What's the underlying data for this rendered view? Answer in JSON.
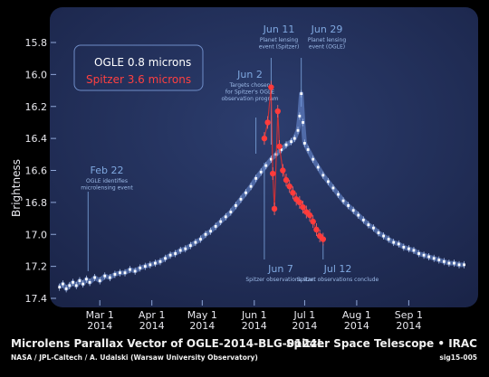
{
  "chart_data": {
    "type": "scatter",
    "ylabel": "Brightness",
    "xlabel": "",
    "y_inverted": true,
    "ylim": [
      17.4,
      15.8
    ],
    "xlim": [
      "2014-02-03",
      "2014-10-08"
    ],
    "x_ticks": [
      {
        "x": "2014-03-01",
        "label1": "Mar 1",
        "label2": "2014"
      },
      {
        "x": "2014-04-01",
        "label1": "Apr 1",
        "label2": "2014"
      },
      {
        "x": "2014-05-01",
        "label1": "May 1",
        "label2": "2014"
      },
      {
        "x": "2014-06-01",
        "label1": "Jun 1",
        "label2": "2014"
      },
      {
        "x": "2014-07-01",
        "label1": "Jul 1",
        "label2": "2014"
      },
      {
        "x": "2014-08-01",
        "label1": "Aug 1",
        "label2": "2014"
      },
      {
        "x": "2014-09-01",
        "label1": "Sep 1",
        "label2": "2014"
      }
    ],
    "y_ticks": [
      "15.8",
      "16.0",
      "16.2",
      "16.4",
      "16.6",
      "16.8",
      "17.0",
      "17.2",
      "17.4"
    ],
    "legend": {
      "placement": "top-left",
      "entries": [
        "OGLE 0.8 microns",
        "Spitzer 3.6 microns"
      ]
    },
    "series": [
      {
        "name": "OGLE 0.8 microns",
        "color": "#ffffff",
        "points": [
          [
            "2014-02-05",
            17.33
          ],
          [
            "2014-02-07",
            17.31
          ],
          [
            "2014-02-09",
            17.34
          ],
          [
            "2014-02-11",
            17.32
          ],
          [
            "2014-02-13",
            17.3
          ],
          [
            "2014-02-15",
            17.32
          ],
          [
            "2014-02-17",
            17.29
          ],
          [
            "2014-02-19",
            17.31
          ],
          [
            "2014-02-21",
            17.28
          ],
          [
            "2014-02-23",
            17.3
          ],
          [
            "2014-02-26",
            17.27
          ],
          [
            "2014-03-01",
            17.29
          ],
          [
            "2014-03-04",
            17.26
          ],
          [
            "2014-03-07",
            17.27
          ],
          [
            "2014-03-10",
            17.25
          ],
          [
            "2014-03-13",
            17.24
          ],
          [
            "2014-03-16",
            17.24
          ],
          [
            "2014-03-19",
            17.22
          ],
          [
            "2014-03-22",
            17.23
          ],
          [
            "2014-03-25",
            17.21
          ],
          [
            "2014-03-28",
            17.2
          ],
          [
            "2014-03-31",
            17.19
          ],
          [
            "2014-04-03",
            17.18
          ],
          [
            "2014-04-06",
            17.17
          ],
          [
            "2014-04-09",
            17.15
          ],
          [
            "2014-04-12",
            17.13
          ],
          [
            "2014-04-15",
            17.12
          ],
          [
            "2014-04-18",
            17.1
          ],
          [
            "2014-04-21",
            17.09
          ],
          [
            "2014-04-24",
            17.07
          ],
          [
            "2014-04-27",
            17.05
          ],
          [
            "2014-04-30",
            17.03
          ],
          [
            "2014-05-03",
            17.0
          ],
          [
            "2014-05-06",
            16.98
          ],
          [
            "2014-05-09",
            16.95
          ],
          [
            "2014-05-12",
            16.92
          ],
          [
            "2014-05-15",
            16.89
          ],
          [
            "2014-05-18",
            16.86
          ],
          [
            "2014-05-21",
            16.82
          ],
          [
            "2014-05-24",
            16.78
          ],
          [
            "2014-05-27",
            16.74
          ],
          [
            "2014-05-30",
            16.7
          ],
          [
            "2014-06-02",
            16.65
          ],
          [
            "2014-06-05",
            16.61
          ],
          [
            "2014-06-08",
            16.57
          ],
          [
            "2014-06-11",
            16.53
          ],
          [
            "2014-06-14",
            16.5
          ],
          [
            "2014-06-17",
            16.47
          ],
          [
            "2014-06-20",
            16.44
          ],
          [
            "2014-06-23",
            16.42
          ],
          [
            "2014-06-25",
            16.4
          ],
          [
            "2014-06-27",
            16.35
          ],
          [
            "2014-06-28",
            16.26
          ],
          [
            "2014-06-29",
            16.12
          ],
          [
            "2014-06-30",
            16.3
          ],
          [
            "2014-07-01",
            16.43
          ],
          [
            "2014-07-03",
            16.47
          ],
          [
            "2014-07-06",
            16.53
          ],
          [
            "2014-07-09",
            16.58
          ],
          [
            "2014-07-12",
            16.63
          ],
          [
            "2014-07-15",
            16.67
          ],
          [
            "2014-07-18",
            16.71
          ],
          [
            "2014-07-21",
            16.75
          ],
          [
            "2014-07-24",
            16.79
          ],
          [
            "2014-07-27",
            16.82
          ],
          [
            "2014-07-30",
            16.85
          ],
          [
            "2014-08-02",
            16.88
          ],
          [
            "2014-08-05",
            16.91
          ],
          [
            "2014-08-08",
            16.94
          ],
          [
            "2014-08-11",
            16.96
          ],
          [
            "2014-08-14",
            16.99
          ],
          [
            "2014-08-17",
            17.01
          ],
          [
            "2014-08-20",
            17.03
          ],
          [
            "2014-08-23",
            17.05
          ],
          [
            "2014-08-26",
            17.06
          ],
          [
            "2014-08-29",
            17.08
          ],
          [
            "2014-09-01",
            17.09
          ],
          [
            "2014-09-04",
            17.1
          ],
          [
            "2014-09-07",
            17.12
          ],
          [
            "2014-09-10",
            17.13
          ],
          [
            "2014-09-13",
            17.14
          ],
          [
            "2014-09-16",
            17.15
          ],
          [
            "2014-09-19",
            17.16
          ],
          [
            "2014-09-22",
            17.17
          ],
          [
            "2014-09-25",
            17.18
          ],
          [
            "2014-09-28",
            17.18
          ],
          [
            "2014-10-01",
            17.19
          ],
          [
            "2014-10-04",
            17.19
          ]
        ]
      },
      {
        "name": "Spitzer 3.6 microns",
        "color": "#ff3b3b",
        "points": [
          [
            "2014-06-07",
            16.4
          ],
          [
            "2014-06-09",
            16.3
          ],
          [
            "2014-06-11",
            16.08
          ],
          [
            "2014-06-12",
            16.62
          ],
          [
            "2014-06-13",
            16.84
          ],
          [
            "2014-06-15",
            16.23
          ],
          [
            "2014-06-16",
            16.45
          ],
          [
            "2014-06-18",
            16.6
          ],
          [
            "2014-06-20",
            16.66
          ],
          [
            "2014-06-22",
            16.7
          ],
          [
            "2014-06-24",
            16.74
          ],
          [
            "2014-06-26",
            16.78
          ],
          [
            "2014-06-28",
            16.8
          ],
          [
            "2014-06-30",
            16.83
          ],
          [
            "2014-07-02",
            16.86
          ],
          [
            "2014-07-04",
            16.88
          ],
          [
            "2014-07-06",
            16.92
          ],
          [
            "2014-07-08",
            16.97
          ],
          [
            "2014-07-10",
            17.01
          ],
          [
            "2014-07-12",
            17.03
          ]
        ]
      }
    ],
    "annotations": [
      {
        "key": "feb22",
        "title": "Feb 22",
        "lines": [
          "OGLE identifies",
          "microlensing event"
        ],
        "x": "2014-02-22"
      },
      {
        "key": "jun2",
        "title": "Jun 2",
        "lines": [
          "Targets chosen",
          "for Spitzer's OGLE",
          "observation program"
        ],
        "x": "2014-06-02"
      },
      {
        "key": "jun11",
        "title": "Jun 11",
        "lines": [
          "Planet lensing",
          "event (Spitzer)"
        ],
        "x": "2014-06-11"
      },
      {
        "key": "jun29",
        "title": "Jun 29",
        "lines": [
          "Planet lensing",
          "event (OGLE)"
        ],
        "x": "2014-06-29"
      },
      {
        "key": "jun7",
        "title": "Jun 7",
        "lines": [
          "Spitzer observations start"
        ],
        "x": "2014-06-07"
      },
      {
        "key": "jul12",
        "title": "Jul 12",
        "lines": [
          "Spitzer observations conclude"
        ],
        "x": "2014-07-12"
      }
    ]
  },
  "footer": {
    "title": "Microlens Parallax Vector of OGLE-2014-BLG-0124L",
    "credit": "NASA / JPL-Caltech / A. Udalski (Warsaw University Observatory)",
    "mission": "Spitzer Space Telescope • IRAC",
    "image_id": "sig15-005"
  }
}
